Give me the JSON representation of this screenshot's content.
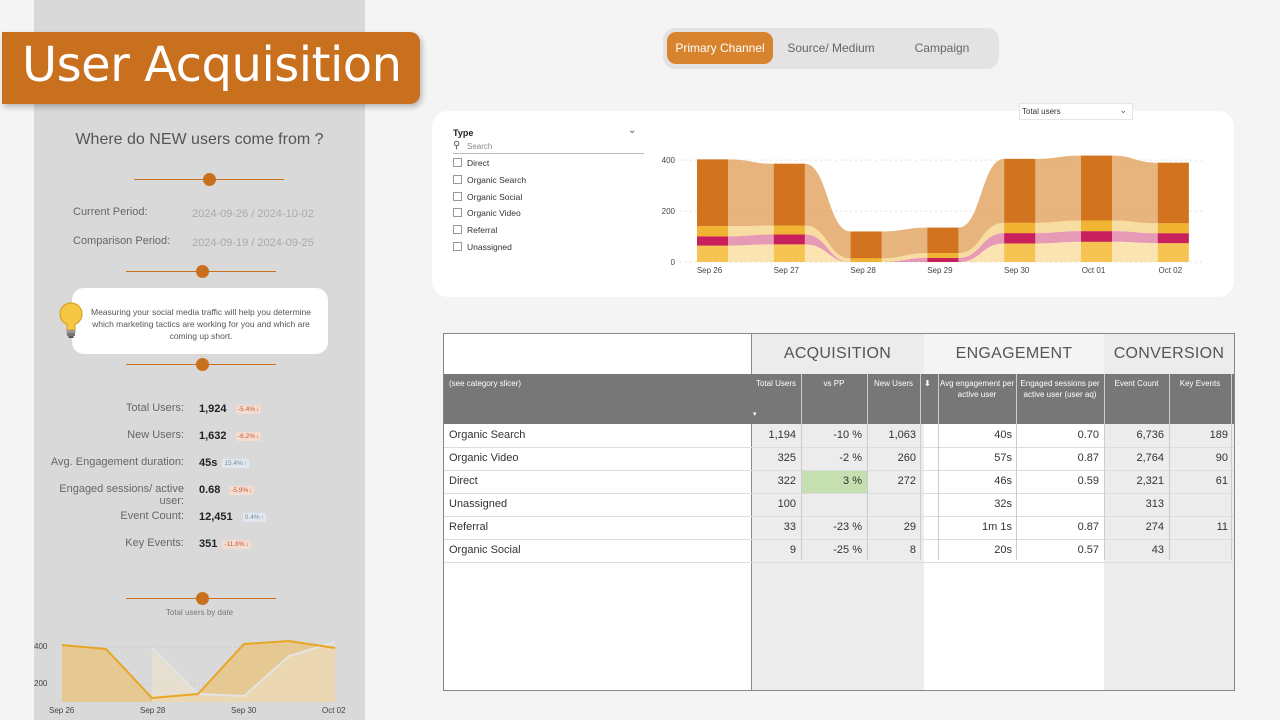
{
  "title": "User Acquisition",
  "question": "Where do NEW users come from ?",
  "periods": {
    "current_label": "Current Period:",
    "current_value": "2024-09-26 / 2024-10-02",
    "comparison_label": "Comparison Period:",
    "comparison_value": "2024-09-19 / 2024-09-25"
  },
  "tip": "Measuring your social media traffic will help you determine which marketing tactics are working for you and which are coming up short.",
  "kpis": [
    {
      "label": "Total Users:",
      "value": "1,924",
      "delta": "-5.4%",
      "trend": "down"
    },
    {
      "label": "New Users:",
      "value": "1,632",
      "delta": "-6.2%",
      "trend": "down"
    },
    {
      "label": "Avg. Engagement duration:",
      "value": "45s",
      "delta": "15.4%",
      "trend": "up"
    },
    {
      "label": "Engaged sessions/ active user:",
      "value": "0.68",
      "delta": "-5.9%",
      "trend": "down"
    },
    {
      "label": "Event Count:",
      "value": "12,451",
      "delta": "0.4%",
      "trend": "up"
    },
    {
      "label": "Key Events:",
      "value": "351",
      "delta": "-11.8%",
      "trend": "down"
    }
  ],
  "mini_chart": {
    "title": "Total users by date",
    "y_ticks": [
      "400",
      "200"
    ],
    "x_ticks": [
      "Sep 26",
      "Sep 28",
      "Sep 30",
      "Oct 02"
    ]
  },
  "tabs": [
    "Primary Channel",
    "Source/ Medium",
    "Campaign"
  ],
  "active_tab": 0,
  "measure_dropdown": "Total users",
  "slicer": {
    "title": "Type",
    "search_placeholder": "Search",
    "items": [
      "Direct",
      "Organic Search",
      "Organic Social",
      "Organic Video",
      "Referral",
      "Unassigned"
    ]
  },
  "chart_data": {
    "type": "bar",
    "x": [
      "Sep 26",
      "Sep 27",
      "Sep 28",
      "Sep 29",
      "Sep 30",
      "Oct 01",
      "Oct 02"
    ],
    "y_ticks": [
      "400",
      "200",
      "0"
    ],
    "ylim": [
      0,
      440
    ],
    "totals": [
      403,
      386,
      120,
      135,
      405,
      418,
      390
    ],
    "colors": {
      "top": "#d2731f",
      "bottom_a": "#f0b432",
      "bottom_b": "#c8205a",
      "bottom_c": "#f6c453"
    }
  },
  "table": {
    "groups": [
      "ACQUISITION",
      "ENGAGEMENT",
      "CONVERSION"
    ],
    "headers": [
      "(see category slicer)",
      "Total Users",
      "vs PP",
      "New Users",
      "Avg engagement per active user",
      "Engaged sessions per active user (user aq)",
      "Event Count",
      "Key Events"
    ],
    "rows": [
      {
        "name": "Organic Search",
        "total": "1,194",
        "vspp": "-10 %",
        "new": "1,063",
        "avg": "40s",
        "eng": "0.70",
        "events": "6,736",
        "key": "189"
      },
      {
        "name": "Organic Video",
        "total": "325",
        "vspp": "-2 %",
        "new": "260",
        "avg": "57s",
        "eng": "0.87",
        "events": "2,764",
        "key": "90"
      },
      {
        "name": "Direct",
        "total": "322",
        "vspp": "3 %",
        "new": "272",
        "avg": "46s",
        "eng": "0.59",
        "events": "2,321",
        "key": "61"
      },
      {
        "name": "Unassigned",
        "total": "100",
        "vspp": "",
        "new": "",
        "avg": "32s",
        "eng": "",
        "events": "313",
        "key": ""
      },
      {
        "name": "Referral",
        "total": "33",
        "vspp": "-23 %",
        "new": "29",
        "avg": "1m 1s",
        "eng": "0.87",
        "events": "274",
        "key": "11"
      },
      {
        "name": "Organic Social",
        "total": "9",
        "vspp": "-25 %",
        "new": "8",
        "avg": "20s",
        "eng": "0.57",
        "events": "43",
        "key": ""
      }
    ]
  }
}
